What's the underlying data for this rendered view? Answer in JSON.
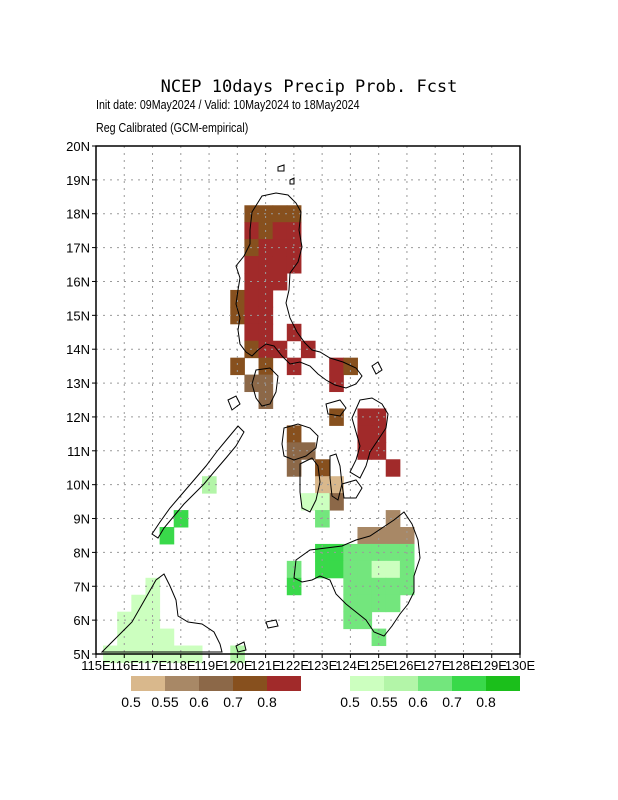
{
  "title": "NCEP 10days Precip Prob. Fcst",
  "subtitle_1": "Init date: 09May2024 / Valid: 10May2024 to 18May2024",
  "subtitle_2": "Reg Calibrated (GCM-empirical)",
  "chart_data": {
    "type": "heatmap",
    "xlim": [
      115,
      130
    ],
    "ylim": [
      5,
      20
    ],
    "grid": true,
    "x_ticks": [
      "115E",
      "116E",
      "117E",
      "118E",
      "119E",
      "120E",
      "121E",
      "122E",
      "123E",
      "124E",
      "125E",
      "126E",
      "127E",
      "128E",
      "129E",
      "130E"
    ],
    "y_ticks": [
      "5N",
      "6N",
      "7N",
      "8N",
      "9N",
      "10N",
      "11N",
      "12N",
      "13N",
      "14N",
      "15N",
      "16N",
      "17N",
      "18N",
      "19N",
      "20N"
    ],
    "dry_legend": {
      "colors": [
        "#d9b88c",
        "#a88866",
        "#8c6848",
        "#87501e",
        "#a12a2a"
      ],
      "labels": [
        "0.5",
        "0.55",
        "0.6",
        "0.7",
        "0.8"
      ]
    },
    "wet_legend": {
      "colors": [
        "#ccffbf",
        "#b3f5a8",
        "#73e67d",
        "#39d94a",
        "#1bbf1b"
      ],
      "labels": [
        "0.5",
        "0.55",
        "0.6",
        "0.7",
        "0.8"
      ]
    },
    "categories_note": "level index 0-4 maps to legend color",
    "dry_cells": [
      {
        "lon": 120.5,
        "lat": 18.0,
        "level": 3
      },
      {
        "lon": 121.0,
        "lat": 18.0,
        "level": 3
      },
      {
        "lon": 121.5,
        "lat": 18.0,
        "level": 3
      },
      {
        "lon": 122.0,
        "lat": 18.0,
        "level": 3
      },
      {
        "lon": 120.5,
        "lat": 17.5,
        "level": 4
      },
      {
        "lon": 121.0,
        "lat": 17.5,
        "level": 3
      },
      {
        "lon": 121.5,
        "lat": 17.5,
        "level": 4
      },
      {
        "lon": 122.0,
        "lat": 17.5,
        "level": 4
      },
      {
        "lon": 120.5,
        "lat": 17.0,
        "level": 3
      },
      {
        "lon": 121.0,
        "lat": 17.0,
        "level": 4
      },
      {
        "lon": 121.5,
        "lat": 17.0,
        "level": 4
      },
      {
        "lon": 122.0,
        "lat": 17.0,
        "level": 4
      },
      {
        "lon": 120.5,
        "lat": 16.5,
        "level": 4
      },
      {
        "lon": 121.0,
        "lat": 16.5,
        "level": 4
      },
      {
        "lon": 121.5,
        "lat": 16.5,
        "level": 4
      },
      {
        "lon": 122.0,
        "lat": 16.5,
        "level": 4
      },
      {
        "lon": 120.5,
        "lat": 16.0,
        "level": 4
      },
      {
        "lon": 121.0,
        "lat": 16.0,
        "level": 4
      },
      {
        "lon": 121.5,
        "lat": 16.0,
        "level": 4
      },
      {
        "lon": 120.0,
        "lat": 15.5,
        "level": 3
      },
      {
        "lon": 120.5,
        "lat": 15.5,
        "level": 4
      },
      {
        "lon": 121.0,
        "lat": 15.5,
        "level": 4
      },
      {
        "lon": 120.0,
        "lat": 15.0,
        "level": 3
      },
      {
        "lon": 120.5,
        "lat": 15.0,
        "level": 4
      },
      {
        "lon": 121.0,
        "lat": 15.0,
        "level": 4
      },
      {
        "lon": 120.5,
        "lat": 14.5,
        "level": 4
      },
      {
        "lon": 121.0,
        "lat": 14.5,
        "level": 4
      },
      {
        "lon": 122.0,
        "lat": 14.5,
        "level": 4
      },
      {
        "lon": 120.5,
        "lat": 14.0,
        "level": 3
      },
      {
        "lon": 121.0,
        "lat": 14.0,
        "level": 4
      },
      {
        "lon": 121.5,
        "lat": 14.0,
        "level": 4
      },
      {
        "lon": 122.5,
        "lat": 14.0,
        "level": 4
      },
      {
        "lon": 120.0,
        "lat": 13.5,
        "level": 3
      },
      {
        "lon": 121.0,
        "lat": 13.5,
        "level": 3
      },
      {
        "lon": 122.0,
        "lat": 13.5,
        "level": 4
      },
      {
        "lon": 123.5,
        "lat": 13.5,
        "level": 4
      },
      {
        "lon": 124.0,
        "lat": 13.5,
        "level": 3
      },
      {
        "lon": 120.5,
        "lat": 13.0,
        "level": 2
      },
      {
        "lon": 121.0,
        "lat": 13.0,
        "level": 2
      },
      {
        "lon": 123.5,
        "lat": 13.0,
        "level": 4
      },
      {
        "lon": 121.0,
        "lat": 12.5,
        "level": 2
      },
      {
        "lon": 123.5,
        "lat": 12.0,
        "level": 3
      },
      {
        "lon": 124.5,
        "lat": 12.0,
        "level": 4
      },
      {
        "lon": 125.0,
        "lat": 12.0,
        "level": 4
      },
      {
        "lon": 122.0,
        "lat": 11.5,
        "level": 3
      },
      {
        "lon": 124.5,
        "lat": 11.5,
        "level": 4
      },
      {
        "lon": 125.0,
        "lat": 11.5,
        "level": 4
      },
      {
        "lon": 122.0,
        "lat": 11.0,
        "level": 2
      },
      {
        "lon": 122.5,
        "lat": 11.0,
        "level": 2
      },
      {
        "lon": 124.5,
        "lat": 11.0,
        "level": 4
      },
      {
        "lon": 125.0,
        "lat": 11.0,
        "level": 4
      },
      {
        "lon": 122.0,
        "lat": 10.5,
        "level": 2
      },
      {
        "lon": 123.0,
        "lat": 10.5,
        "level": 3
      },
      {
        "lon": 125.5,
        "lat": 10.5,
        "level": 4
      },
      {
        "lon": 123.0,
        "lat": 10.0,
        "level": 0
      },
      {
        "lon": 123.5,
        "lat": 10.0,
        "level": 0
      },
      {
        "lon": 123.5,
        "lat": 9.5,
        "level": 2
      },
      {
        "lon": 125.5,
        "lat": 9.0,
        "level": 1
      },
      {
        "lon": 124.5,
        "lat": 8.5,
        "level": 1
      },
      {
        "lon": 125.0,
        "lat": 8.5,
        "level": 1
      },
      {
        "lon": 125.5,
        "lat": 8.5,
        "level": 1
      },
      {
        "lon": 126.0,
        "lat": 8.5,
        "level": 1
      }
    ],
    "wet_cells": [
      {
        "lon": 123.0,
        "lat": 9.5,
        "level": 0
      },
      {
        "lon": 122.5,
        "lat": 9.5,
        "level": 0
      },
      {
        "lon": 123.0,
        "lat": 9.0,
        "level": 2
      },
      {
        "lon": 119.0,
        "lat": 10.0,
        "level": 1
      },
      {
        "lon": 118.0,
        "lat": 9.0,
        "level": 3
      },
      {
        "lon": 117.5,
        "lat": 8.5,
        "level": 3
      },
      {
        "lon": 123.0,
        "lat": 8.0,
        "level": 3
      },
      {
        "lon": 123.5,
        "lat": 8.0,
        "level": 3
      },
      {
        "lon": 124.0,
        "lat": 8.0,
        "level": 2
      },
      {
        "lon": 124.5,
        "lat": 8.0,
        "level": 2
      },
      {
        "lon": 125.0,
        "lat": 8.0,
        "level": 2
      },
      {
        "lon": 125.5,
        "lat": 8.0,
        "level": 2
      },
      {
        "lon": 126.0,
        "lat": 8.0,
        "level": 2
      },
      {
        "lon": 122.0,
        "lat": 7.5,
        "level": 2
      },
      {
        "lon": 123.0,
        "lat": 7.5,
        "level": 3
      },
      {
        "lon": 123.5,
        "lat": 7.5,
        "level": 3
      },
      {
        "lon": 124.0,
        "lat": 7.5,
        "level": 2
      },
      {
        "lon": 124.5,
        "lat": 7.5,
        "level": 2
      },
      {
        "lon": 125.0,
        "lat": 7.5,
        "level": 0
      },
      {
        "lon": 125.5,
        "lat": 7.5,
        "level": 0
      },
      {
        "lon": 126.0,
        "lat": 7.5,
        "level": 2
      },
      {
        "lon": 122.0,
        "lat": 7.0,
        "level": 3
      },
      {
        "lon": 124.0,
        "lat": 7.0,
        "level": 2
      },
      {
        "lon": 124.5,
        "lat": 7.0,
        "level": 2
      },
      {
        "lon": 125.0,
        "lat": 7.0,
        "level": 2
      },
      {
        "lon": 125.5,
        "lat": 7.0,
        "level": 2
      },
      {
        "lon": 126.0,
        "lat": 7.0,
        "level": 2
      },
      {
        "lon": 124.0,
        "lat": 6.5,
        "level": 2
      },
      {
        "lon": 124.5,
        "lat": 6.5,
        "level": 2
      },
      {
        "lon": 125.0,
        "lat": 6.5,
        "level": 2
      },
      {
        "lon": 125.5,
        "lat": 6.5,
        "level": 2
      },
      {
        "lon": 124.0,
        "lat": 6.0,
        "level": 2
      },
      {
        "lon": 124.5,
        "lat": 6.0,
        "level": 2
      },
      {
        "lon": 125.0,
        "lat": 5.5,
        "level": 2
      },
      {
        "lon": 117.0,
        "lat": 7.0,
        "level": 0
      },
      {
        "lon": 116.5,
        "lat": 6.5,
        "level": 0
      },
      {
        "lon": 117.0,
        "lat": 6.5,
        "level": 0
      },
      {
        "lon": 116.0,
        "lat": 6.0,
        "level": 0
      },
      {
        "lon": 116.5,
        "lat": 6.0,
        "level": 0
      },
      {
        "lon": 117.0,
        "lat": 6.0,
        "level": 0
      },
      {
        "lon": 116.0,
        "lat": 5.5,
        "level": 0
      },
      {
        "lon": 116.5,
        "lat": 5.5,
        "level": 0
      },
      {
        "lon": 117.0,
        "lat": 5.5,
        "level": 0
      },
      {
        "lon": 117.5,
        "lat": 5.5,
        "level": 0
      },
      {
        "lon": 115.5,
        "lat": 5.0,
        "level": 0
      },
      {
        "lon": 116.0,
        "lat": 5.0,
        "level": 0
      },
      {
        "lon": 116.5,
        "lat": 5.0,
        "level": 0
      },
      {
        "lon": 117.0,
        "lat": 5.0,
        "level": 0
      },
      {
        "lon": 117.5,
        "lat": 5.0,
        "level": 0
      },
      {
        "lon": 118.0,
        "lat": 5.0,
        "level": 0
      },
      {
        "lon": 118.5,
        "lat": 5.0,
        "level": 0
      },
      {
        "lon": 120.0,
        "lat": 5.0,
        "level": 1
      }
    ]
  }
}
